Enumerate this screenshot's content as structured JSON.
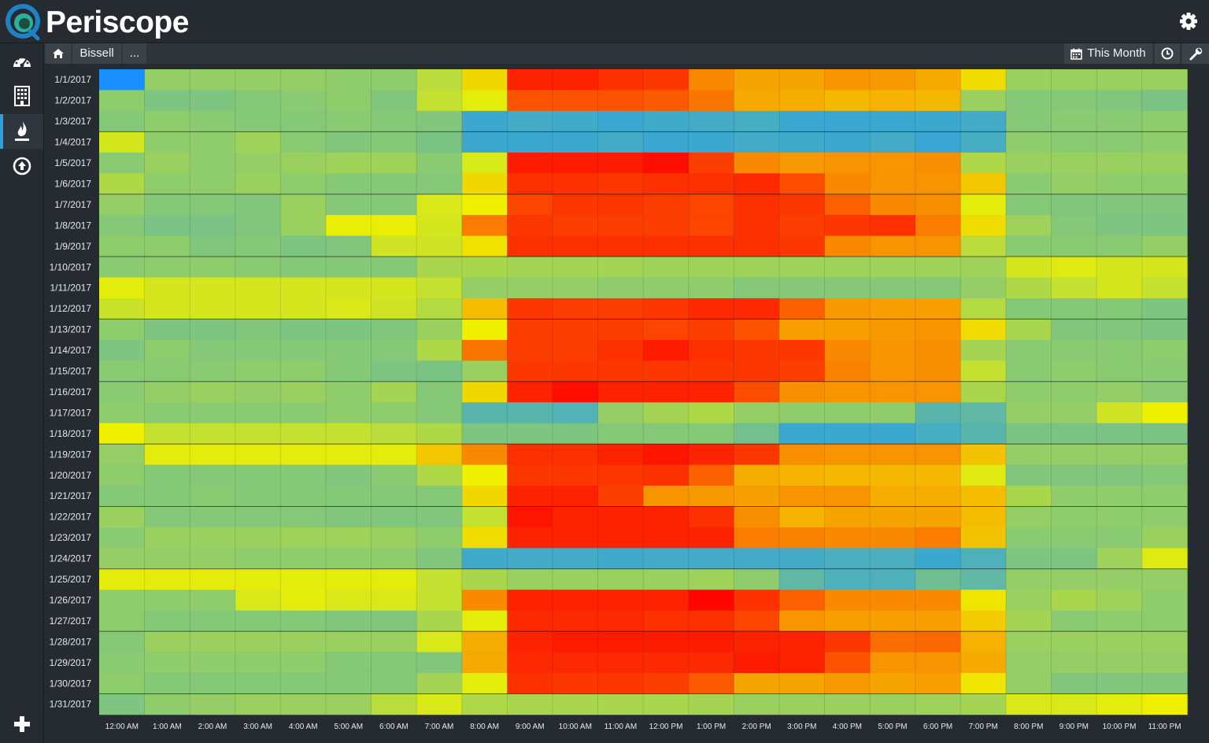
{
  "app": {
    "name": "Periscope"
  },
  "breadcrumb": {
    "home_icon": "home-icon",
    "item": "Bissell",
    "more": "..."
  },
  "toolbar": {
    "date_range": "This Month",
    "calendar_icon": "calendar-icon",
    "clock_icon": "clock-icon",
    "wrench_icon": "wrench-icon"
  },
  "sidebar": {
    "items": [
      {
        "icon": "dashboard-gauge-icon"
      },
      {
        "icon": "building-icon"
      },
      {
        "icon": "flame-icon",
        "active": true
      },
      {
        "icon": "upload-circle-icon"
      }
    ],
    "bottom_icon": "plus-icon"
  },
  "chart_data": {
    "type": "heatmap",
    "y_categories": [
      "1/1/2017",
      "1/2/2017",
      "1/3/2017",
      "1/4/2017",
      "1/5/2017",
      "1/6/2017",
      "1/7/2017",
      "1/8/2017",
      "1/9/2017",
      "1/10/2017",
      "1/11/2017",
      "1/12/2017",
      "1/13/2017",
      "1/14/2017",
      "1/15/2017",
      "1/16/2017",
      "1/17/2017",
      "1/18/2017",
      "1/19/2017",
      "1/20/2017",
      "1/21/2017",
      "1/22/2017",
      "1/23/2017",
      "1/24/2017",
      "1/25/2017",
      "1/26/2017",
      "1/27/2017",
      "1/28/2017",
      "1/29/2017",
      "1/30/2017",
      "1/31/2017"
    ],
    "x_categories": [
      "12:00 AM",
      "1:00 AM",
      "2:00 AM",
      "3:00 AM",
      "4:00 AM",
      "5:00 AM",
      "6:00 AM",
      "7:00 AM",
      "8:00 AM",
      "9:00 AM",
      "10:00 AM",
      "11:00 AM",
      "12:00 PM",
      "1:00 PM",
      "2:00 PM",
      "3:00 PM",
      "4:00 PM",
      "5:00 PM",
      "6:00 PM",
      "7:00 PM",
      "8:00 PM",
      "9:00 PM",
      "10:00 PM",
      "11:00 PM"
    ],
    "color_scale": {
      "0": "#1a8fff",
      "0.2": "#3ca8cf",
      "0.4": "#85c878",
      "0.6": "#eef000",
      "0.8": "#f98a00",
      "1": "#ff0000"
    },
    "values": [
      [
        0.0,
        0.43,
        0.43,
        0.43,
        0.43,
        0.42,
        0.42,
        0.5,
        0.65,
        0.95,
        0.95,
        0.93,
        0.92,
        0.8,
        0.75,
        0.75,
        0.78,
        0.77,
        0.74,
        0.64,
        0.44,
        0.44,
        0.44,
        0.44
      ],
      [
        0.42,
        0.38,
        0.38,
        0.4,
        0.41,
        0.42,
        0.39,
        0.52,
        0.58,
        0.88,
        0.88,
        0.88,
        0.87,
        0.83,
        0.74,
        0.73,
        0.71,
        0.72,
        0.71,
        0.44,
        0.4,
        0.4,
        0.39,
        0.37
      ],
      [
        0.4,
        0.42,
        0.41,
        0.4,
        0.4,
        0.41,
        0.4,
        0.39,
        0.2,
        0.22,
        0.21,
        0.19,
        0.21,
        0.22,
        0.23,
        0.19,
        0.19,
        0.19,
        0.2,
        0.22,
        0.4,
        0.41,
        0.41,
        0.42
      ],
      [
        0.55,
        0.42,
        0.42,
        0.45,
        0.41,
        0.39,
        0.4,
        0.37,
        0.2,
        0.2,
        0.2,
        0.22,
        0.19,
        0.2,
        0.22,
        0.21,
        0.2,
        0.22,
        0.18,
        0.23,
        0.42,
        0.41,
        0.41,
        0.42
      ],
      [
        0.41,
        0.44,
        0.42,
        0.43,
        0.44,
        0.45,
        0.45,
        0.41,
        0.56,
        0.96,
        0.96,
        0.96,
        0.98,
        0.91,
        0.8,
        0.77,
        0.78,
        0.78,
        0.79,
        0.48,
        0.44,
        0.44,
        0.44,
        0.44
      ],
      [
        0.48,
        0.42,
        0.42,
        0.44,
        0.42,
        0.4,
        0.4,
        0.4,
        0.65,
        0.93,
        0.93,
        0.92,
        0.93,
        0.93,
        0.94,
        0.89,
        0.8,
        0.78,
        0.78,
        0.68,
        0.41,
        0.43,
        0.42,
        0.42
      ],
      [
        0.43,
        0.4,
        0.4,
        0.39,
        0.44,
        0.4,
        0.4,
        0.56,
        0.6,
        0.9,
        0.92,
        0.92,
        0.91,
        0.9,
        0.93,
        0.92,
        0.86,
        0.8,
        0.79,
        0.58,
        0.4,
        0.39,
        0.39,
        0.39
      ],
      [
        0.4,
        0.37,
        0.37,
        0.39,
        0.44,
        0.59,
        0.59,
        0.55,
        0.82,
        0.92,
        0.91,
        0.91,
        0.91,
        0.9,
        0.93,
        0.91,
        0.92,
        0.93,
        0.82,
        0.64,
        0.45,
        0.4,
        0.38,
        0.38
      ],
      [
        0.42,
        0.42,
        0.39,
        0.4,
        0.38,
        0.39,
        0.54,
        0.54,
        0.63,
        0.93,
        0.93,
        0.93,
        0.93,
        0.93,
        0.93,
        0.92,
        0.8,
        0.78,
        0.78,
        0.5,
        0.41,
        0.41,
        0.41,
        0.43
      ],
      [
        0.41,
        0.42,
        0.42,
        0.41,
        0.4,
        0.4,
        0.4,
        0.47,
        0.47,
        0.46,
        0.46,
        0.46,
        0.45,
        0.45,
        0.45,
        0.45,
        0.45,
        0.45,
        0.45,
        0.45,
        0.55,
        0.57,
        0.55,
        0.55
      ],
      [
        0.58,
        0.55,
        0.55,
        0.55,
        0.55,
        0.55,
        0.55,
        0.52,
        0.43,
        0.43,
        0.43,
        0.42,
        0.42,
        0.42,
        0.4,
        0.4,
        0.4,
        0.4,
        0.4,
        0.43,
        0.48,
        0.52,
        0.55,
        0.52
      ],
      [
        0.53,
        0.55,
        0.55,
        0.55,
        0.55,
        0.56,
        0.54,
        0.49,
        0.7,
        0.92,
        0.91,
        0.91,
        0.92,
        0.94,
        0.94,
        0.86,
        0.77,
        0.76,
        0.76,
        0.49,
        0.4,
        0.4,
        0.4,
        0.38
      ],
      [
        0.42,
        0.38,
        0.38,
        0.39,
        0.38,
        0.38,
        0.39,
        0.44,
        0.6,
        0.91,
        0.91,
        0.91,
        0.9,
        0.91,
        0.88,
        0.76,
        0.76,
        0.77,
        0.78,
        0.64,
        0.47,
        0.39,
        0.39,
        0.38
      ],
      [
        0.38,
        0.42,
        0.4,
        0.4,
        0.4,
        0.4,
        0.4,
        0.48,
        0.83,
        0.91,
        0.91,
        0.93,
        0.96,
        0.93,
        0.92,
        0.92,
        0.8,
        0.78,
        0.79,
        0.46,
        0.41,
        0.41,
        0.41,
        0.42
      ],
      [
        0.41,
        0.41,
        0.41,
        0.42,
        0.42,
        0.4,
        0.38,
        0.37,
        0.44,
        0.92,
        0.92,
        0.92,
        0.92,
        0.92,
        0.92,
        0.91,
        0.81,
        0.78,
        0.79,
        0.52,
        0.41,
        0.42,
        0.41,
        0.41
      ],
      [
        0.41,
        0.43,
        0.44,
        0.43,
        0.44,
        0.42,
        0.46,
        0.4,
        0.65,
        0.95,
        0.98,
        0.95,
        0.95,
        0.95,
        0.89,
        0.79,
        0.78,
        0.78,
        0.78,
        0.47,
        0.42,
        0.42,
        0.43,
        0.41
      ],
      [
        0.42,
        0.41,
        0.41,
        0.41,
        0.41,
        0.42,
        0.42,
        0.4,
        0.28,
        0.28,
        0.26,
        0.43,
        0.46,
        0.48,
        0.43,
        0.42,
        0.42,
        0.42,
        0.28,
        0.3,
        0.43,
        0.43,
        0.54,
        0.6
      ],
      [
        0.6,
        0.52,
        0.52,
        0.52,
        0.52,
        0.52,
        0.5,
        0.48,
        0.38,
        0.38,
        0.38,
        0.4,
        0.4,
        0.4,
        0.35,
        0.2,
        0.2,
        0.2,
        0.23,
        0.28,
        0.37,
        0.37,
        0.37,
        0.37
      ],
      [
        0.43,
        0.58,
        0.58,
        0.58,
        0.58,
        0.58,
        0.58,
        0.68,
        0.8,
        0.93,
        0.93,
        0.95,
        0.97,
        0.95,
        0.92,
        0.79,
        0.78,
        0.78,
        0.78,
        0.69,
        0.43,
        0.43,
        0.43,
        0.43
      ],
      [
        0.42,
        0.4,
        0.4,
        0.4,
        0.4,
        0.39,
        0.41,
        0.48,
        0.6,
        0.92,
        0.92,
        0.92,
        0.93,
        0.86,
        0.73,
        0.72,
        0.71,
        0.71,
        0.71,
        0.57,
        0.39,
        0.39,
        0.39,
        0.4
      ],
      [
        0.4,
        0.4,
        0.41,
        0.4,
        0.4,
        0.4,
        0.4,
        0.4,
        0.65,
        0.95,
        0.95,
        0.91,
        0.78,
        0.77,
        0.76,
        0.78,
        0.78,
        0.73,
        0.73,
        0.7,
        0.47,
        0.42,
        0.42,
        0.42
      ],
      [
        0.44,
        0.4,
        0.4,
        0.4,
        0.4,
        0.39,
        0.39,
        0.39,
        0.52,
        0.97,
        0.95,
        0.95,
        0.95,
        0.93,
        0.79,
        0.72,
        0.75,
        0.75,
        0.75,
        0.7,
        0.43,
        0.42,
        0.42,
        0.42
      ],
      [
        0.41,
        0.44,
        0.44,
        0.44,
        0.45,
        0.45,
        0.44,
        0.42,
        0.64,
        0.95,
        0.95,
        0.95,
        0.95,
        0.95,
        0.82,
        0.81,
        0.8,
        0.8,
        0.82,
        0.69,
        0.41,
        0.41,
        0.41,
        0.44
      ],
      [
        0.43,
        0.43,
        0.43,
        0.42,
        0.42,
        0.42,
        0.42,
        0.39,
        0.21,
        0.22,
        0.22,
        0.21,
        0.22,
        0.22,
        0.22,
        0.22,
        0.24,
        0.24,
        0.2,
        0.25,
        0.38,
        0.38,
        0.45,
        0.57
      ],
      [
        0.58,
        0.58,
        0.58,
        0.58,
        0.58,
        0.58,
        0.58,
        0.52,
        0.47,
        0.44,
        0.44,
        0.44,
        0.44,
        0.45,
        0.42,
        0.3,
        0.25,
        0.25,
        0.34,
        0.3,
        0.43,
        0.43,
        0.43,
        0.43
      ],
      [
        0.42,
        0.42,
        0.42,
        0.56,
        0.58,
        0.56,
        0.56,
        0.52,
        0.8,
        0.95,
        0.95,
        0.95,
        0.95,
        0.99,
        0.93,
        0.86,
        0.8,
        0.8,
        0.8,
        0.62,
        0.44,
        0.47,
        0.45,
        0.42
      ],
      [
        0.42,
        0.4,
        0.4,
        0.4,
        0.4,
        0.39,
        0.39,
        0.47,
        0.58,
        0.94,
        0.94,
        0.94,
        0.93,
        0.93,
        0.9,
        0.78,
        0.76,
        0.76,
        0.76,
        0.67,
        0.46,
        0.41,
        0.42,
        0.42
      ],
      [
        0.4,
        0.44,
        0.44,
        0.44,
        0.44,
        0.44,
        0.44,
        0.56,
        0.73,
        0.95,
        0.96,
        0.96,
        0.96,
        0.96,
        0.95,
        0.95,
        0.92,
        0.84,
        0.85,
        0.72,
        0.44,
        0.44,
        0.44,
        0.44
      ],
      [
        0.41,
        0.42,
        0.42,
        0.42,
        0.42,
        0.4,
        0.4,
        0.39,
        0.74,
        0.94,
        0.94,
        0.94,
        0.94,
        0.94,
        0.96,
        0.95,
        0.88,
        0.78,
        0.78,
        0.74,
        0.43,
        0.43,
        0.43,
        0.43
      ],
      [
        0.42,
        0.4,
        0.4,
        0.4,
        0.4,
        0.4,
        0.4,
        0.46,
        0.58,
        0.93,
        0.92,
        0.92,
        0.91,
        0.87,
        0.75,
        0.75,
        0.77,
        0.75,
        0.76,
        0.62,
        0.43,
        0.39,
        0.39,
        0.39
      ],
      [
        0.38,
        0.42,
        0.43,
        0.44,
        0.44,
        0.44,
        0.5,
        0.56,
        0.48,
        0.47,
        0.47,
        0.47,
        0.47,
        0.46,
        0.44,
        0.44,
        0.44,
        0.44,
        0.45,
        0.46,
        0.56,
        0.56,
        0.58,
        0.6
      ]
    ]
  }
}
